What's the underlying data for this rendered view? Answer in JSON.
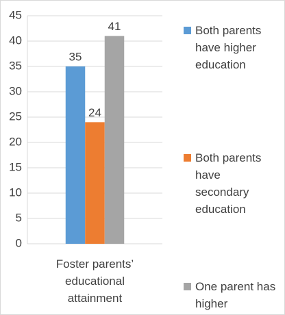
{
  "chart_data": {
    "type": "bar",
    "categories": [
      "Foster parents’ educational attainment"
    ],
    "series": [
      {
        "name": "Both parents have higher education",
        "color": "#5b9bd5",
        "values": [
          35
        ]
      },
      {
        "name": "Both parents have secondary education",
        "color": "#ed7d31",
        "values": [
          24
        ]
      },
      {
        "name": "One parent has higher",
        "color": "#a5a5a5",
        "values": [
          41
        ]
      }
    ],
    "ylim": [
      0,
      45
    ],
    "yticks": [
      0,
      5,
      10,
      15,
      20,
      25,
      30,
      35,
      40,
      45
    ],
    "grid": true,
    "legend": "right"
  }
}
